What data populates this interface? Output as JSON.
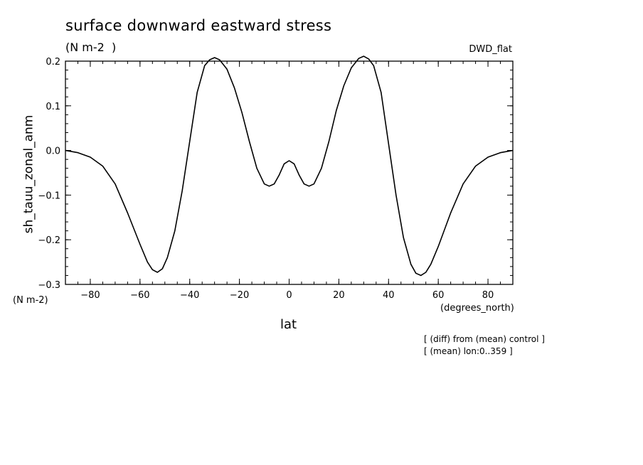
{
  "chart_data": {
    "type": "line",
    "title": "surface downward eastward stress",
    "units_label": "(N m-2  )",
    "run_label": "DWD_flat",
    "ylabel": "sh_tauu_zonal_anm",
    "y_units": "(N m-2)",
    "xlabel": "lat",
    "x_units": "(degrees_north)",
    "notes": [
      "[ (diff) from (mean) control ]",
      "[ (mean) lon:0..359 ]"
    ],
    "xlim": [
      -90,
      90
    ],
    "ylim": [
      -0.3,
      0.2
    ],
    "x_ticks": [
      -80,
      -60,
      -40,
      -20,
      0,
      20,
      40,
      60,
      80
    ],
    "x_tick_labels": [
      "−80",
      "−60",
      "−40",
      "−20",
      "0",
      "20",
      "40",
      "60",
      "80"
    ],
    "y_ticks": [
      0.2,
      0.1,
      0.0,
      -0.1,
      -0.2,
      -0.3
    ],
    "y_tick_labels": [
      "0.2",
      "0.1",
      "0.0",
      "−0.1",
      "−0.2",
      "−0.3"
    ],
    "grid": false,
    "legend": "none",
    "line_color": "#000000",
    "series": [
      {
        "x": [
          -90,
          -85,
          -80,
          -75,
          -70,
          -65,
          -60,
          -57,
          -55,
          -53,
          -51,
          -49,
          -46,
          -43,
          -40,
          -37,
          -34,
          -32,
          -30,
          -28,
          -25,
          -22,
          -19,
          -16,
          -13,
          -10,
          -8,
          -6,
          -4,
          -2,
          0,
          2,
          4,
          6,
          8,
          10,
          13,
          16,
          19,
          22,
          25,
          28,
          30,
          32,
          34,
          37,
          40,
          43,
          46,
          49,
          51,
          53,
          55,
          57,
          60,
          65,
          70,
          75,
          80,
          85,
          90
        ],
        "y": [
          0.0,
          -0.005,
          -0.015,
          -0.035,
          -0.075,
          -0.14,
          -0.21,
          -0.25,
          -0.267,
          -0.273,
          -0.265,
          -0.24,
          -0.18,
          -0.09,
          0.02,
          0.13,
          0.19,
          0.203,
          0.208,
          0.203,
          0.182,
          0.14,
          0.085,
          0.02,
          -0.04,
          -0.075,
          -0.08,
          -0.075,
          -0.055,
          -0.03,
          -0.023,
          -0.03,
          -0.055,
          -0.075,
          -0.08,
          -0.075,
          -0.04,
          0.02,
          0.09,
          0.145,
          0.185,
          0.206,
          0.211,
          0.205,
          0.19,
          0.13,
          0.015,
          -0.1,
          -0.195,
          -0.255,
          -0.275,
          -0.28,
          -0.273,
          -0.255,
          -0.215,
          -0.14,
          -0.075,
          -0.035,
          -0.015,
          -0.005,
          0.0
        ]
      }
    ]
  }
}
